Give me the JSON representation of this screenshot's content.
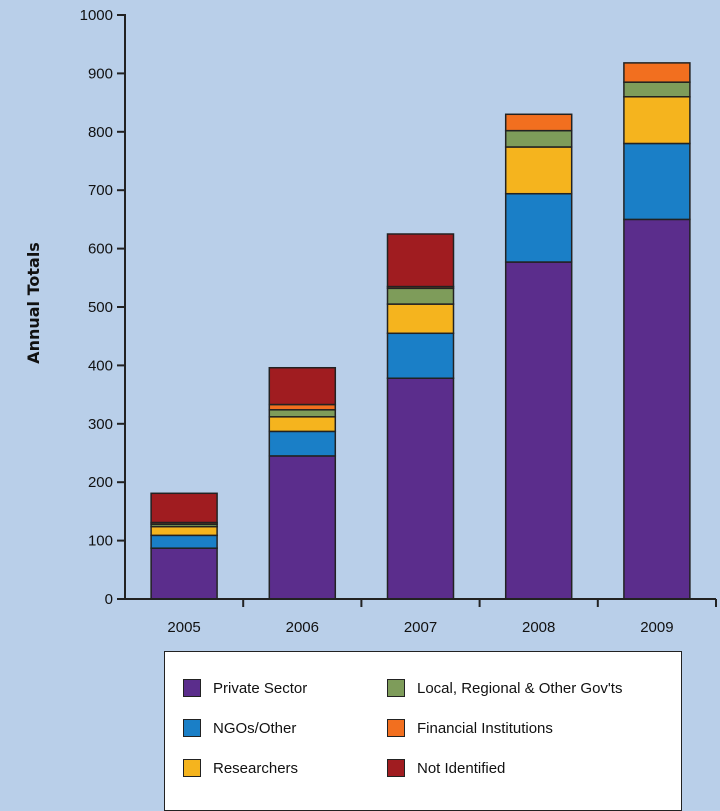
{
  "chart_data": {
    "type": "bar",
    "stacked": true,
    "categories": [
      "2005",
      "2006",
      "2007",
      "2008",
      "2009"
    ],
    "ylabel": "Annual Totals",
    "xlabel": "",
    "ylim": [
      0,
      1000
    ],
    "yticks": [
      "0",
      "100",
      "200",
      "300",
      "400",
      "500",
      "600",
      "700",
      "800",
      "900",
      "1000"
    ],
    "grid": false,
    "legend_position": "bottom",
    "series": [
      {
        "name": "Private Sector",
        "color": "#5b2d8c",
        "values": [
          87,
          245,
          378,
          577,
          650
        ]
      },
      {
        "name": "NGOs/Other",
        "color": "#1a7fc7",
        "values": [
          22,
          42,
          77,
          117,
          130
        ]
      },
      {
        "name": "Researchers",
        "color": "#f5b41e",
        "values": [
          15,
          25,
          50,
          80,
          80
        ]
      },
      {
        "name": "Local, Regional & Other Gov'ts",
        "color": "#7e9c5a",
        "values": [
          4,
          12,
          27,
          28,
          25
        ]
      },
      {
        "name": "Financial Institutions",
        "color": "#f26f1f",
        "values": [
          3,
          9,
          3,
          28,
          33
        ]
      },
      {
        "name": "Not Identified",
        "color": "#a01c20",
        "values": [
          50,
          63,
          90,
          0,
          0
        ]
      }
    ]
  }
}
